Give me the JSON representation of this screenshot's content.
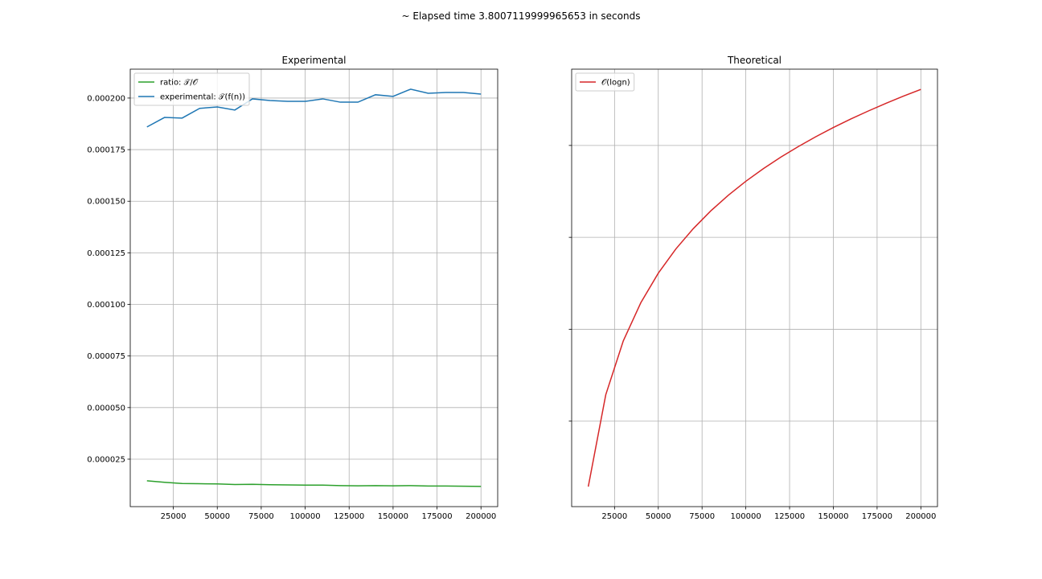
{
  "figure_title": "~ Elapsed time 3.8007119999965653 in seconds",
  "chart_data": [
    {
      "type": "line",
      "title": "Experimental",
      "x": [
        10000,
        20000,
        30000,
        40000,
        50000,
        60000,
        70000,
        80000,
        90000,
        100000,
        110000,
        120000,
        130000,
        140000,
        150000,
        160000,
        170000,
        180000,
        190000,
        200000
      ],
      "series": [
        {
          "name": "ratio: 𝒯/𝒪",
          "color": "#2ca02c",
          "values": [
            1.45e-05,
            1.38e-05,
            1.32e-05,
            1.31e-05,
            1.3e-05,
            1.27e-05,
            1.28e-05,
            1.26e-05,
            1.25e-05,
            1.24e-05,
            1.24e-05,
            1.22e-05,
            1.21e-05,
            1.22e-05,
            1.21e-05,
            1.22e-05,
            1.2e-05,
            1.2e-05,
            1.19e-05,
            1.18e-05
          ]
        },
        {
          "name": "experimental: 𝒯(f(n))",
          "color": "#1f77b4",
          "values": [
            0.000186,
            0.0001906,
            0.0001903,
            0.000195,
            0.0001957,
            0.0001942,
            0.0001996,
            0.0001988,
            0.0001984,
            0.0001984,
            0.0001996,
            0.000198,
            0.000198,
            0.0002016,
            0.0002008,
            0.0002043,
            0.0002023,
            0.0002027,
            0.0002027,
            0.0002019
          ]
        }
      ],
      "xlim": [
        500,
        209500
      ],
      "xticks": [
        25000,
        50000,
        75000,
        100000,
        125000,
        150000,
        175000,
        200000
      ],
      "ylim": [
        2e-06,
        0.000214
      ],
      "yticks": [
        2.5e-05,
        {
          "value": 5e-05,
          "label": "0.000050"
        },
        {
          "value": 7.5e-05,
          "label": "0.000075"
        },
        {
          "value": 0.0001,
          "label": "0.000100"
        },
        {
          "value": 0.000125,
          "label": "0.000125"
        },
        {
          "value": 0.00015,
          "label": "0.000150"
        },
        {
          "value": 0.000175,
          "label": "0.000175"
        },
        {
          "value": 0.0002,
          "label": "0.000200"
        }
      ],
      "ytick_labels": true,
      "grid": true,
      "legend": "upper left"
    },
    {
      "type": "line",
      "title": "Theoretical",
      "x": [
        10000,
        20000,
        30000,
        40000,
        50000,
        60000,
        70000,
        80000,
        90000,
        100000,
        110000,
        120000,
        130000,
        140000,
        150000,
        160000,
        170000,
        180000,
        190000,
        200000
      ],
      "series": [
        {
          "name": "𝒪(logn)",
          "color": "#d62728",
          "values": [
            13.288,
            14.288,
            14.873,
            15.288,
            15.61,
            15.873,
            16.095,
            16.288,
            16.458,
            16.61,
            16.747,
            16.873,
            16.988,
            17.095,
            17.195,
            17.288,
            17.375,
            17.458,
            17.536,
            17.61
          ]
        }
      ],
      "xlim": [
        500,
        209500
      ],
      "xticks": [
        25000,
        50000,
        75000,
        100000,
        125000,
        150000,
        175000,
        200000
      ],
      "ylim": [
        13.07,
        17.83
      ],
      "yticks": [
        14,
        15,
        16,
        17
      ],
      "ytick_labels": false,
      "grid": true,
      "legend": "upper left"
    }
  ]
}
